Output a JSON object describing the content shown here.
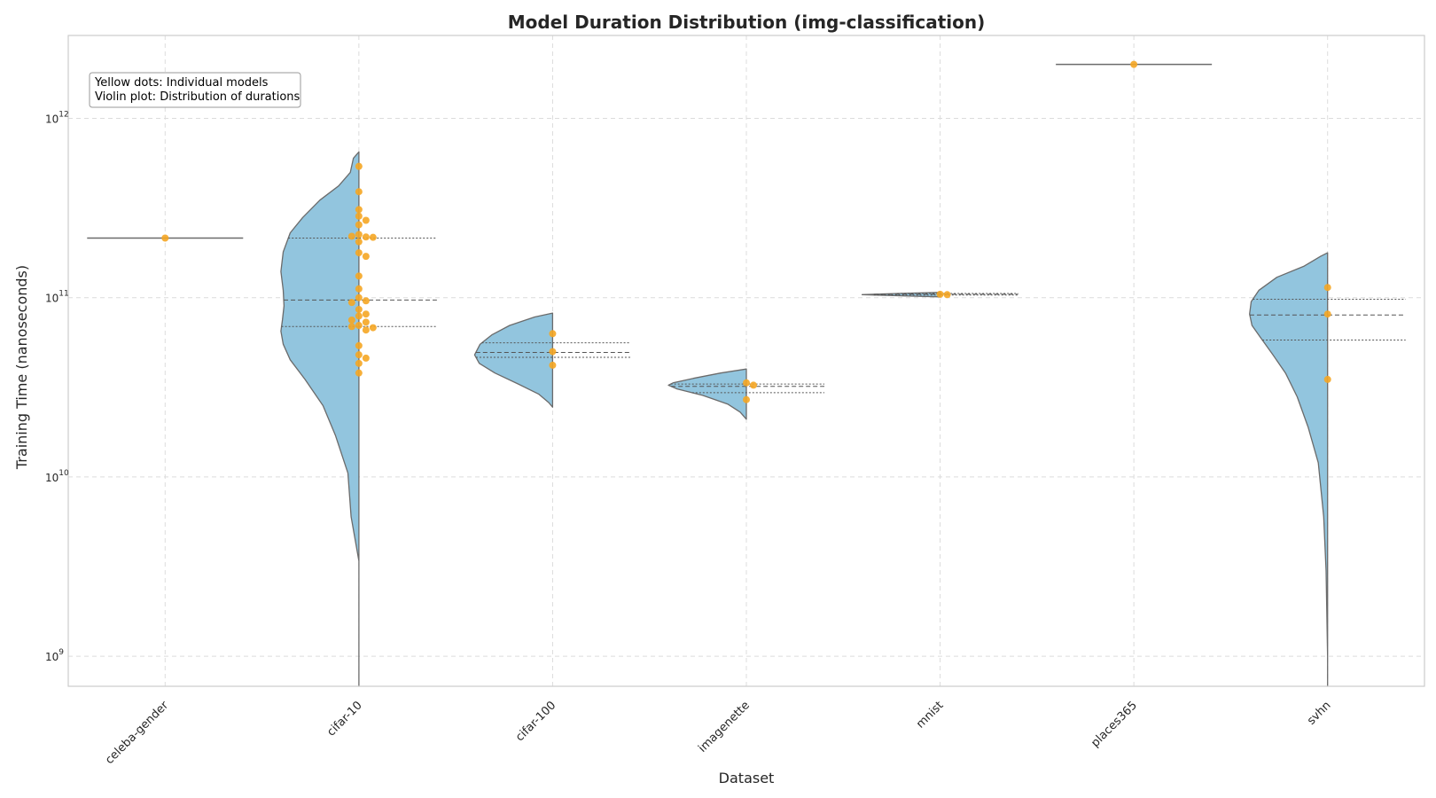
{
  "chart_data": {
    "type": "violin",
    "title": "Model Duration Distribution (img-classification)",
    "xlabel": "Dataset",
    "ylabel": "Training Time (nanoseconds)",
    "yscale": "log",
    "ylim": [
      680000000.0,
      2900000000000.0
    ],
    "yticks": [
      {
        "base": "10",
        "exp": "9",
        "value": 1000000000.0
      },
      {
        "base": "10",
        "exp": "10",
        "value": 10000000000.0
      },
      {
        "base": "10",
        "exp": "11",
        "value": 100000000000.0
      },
      {
        "base": "10",
        "exp": "12",
        "value": 1000000000000.0
      }
    ],
    "categories": [
      "celeba-gender",
      "cifar-10",
      "cifar-100",
      "imagenette",
      "mnist",
      "places365",
      "svhn"
    ],
    "annotation": [
      "Yellow dots: Individual models",
      "Violin plot: Distribution of durations"
    ],
    "colors": {
      "violin_fill": "#92c5de",
      "violin_edge": "#6b6b6b",
      "dot": "#f5a623",
      "grid": "#dcdcdc",
      "frame": "#cccccc"
    },
    "series": [
      {
        "name": "celeba-gender",
        "points": [
          215000000000.0
        ],
        "violin": [
          [
            215000000000.0,
            1.0
          ]
        ],
        "quartiles": []
      },
      {
        "name": "cifar-10",
        "points": [
          540000000000.0,
          390000000000.0,
          310000000000.0,
          285000000000.0,
          270000000000.0,
          255000000000.0,
          225000000000.0,
          218000000000.0,
          220000000000.0,
          217000000000.0,
          205000000000.0,
          178000000000.0,
          170000000000.0,
          132000000000.0,
          112000000000.0,
          100000000000.0,
          96000000000.0,
          94000000000.0,
          86000000000.0,
          81000000000.0,
          79000000000.0,
          75000000000.0,
          73000000000.0,
          70000000000.0,
          69000000000.0,
          68000000000.0,
          66000000000.0,
          54000000000.0,
          48000000000.0,
          46000000000.0,
          43000000000.0,
          38000000000.0
        ],
        "violin": [
          [
            650000000000.0,
            0.0
          ],
          [
            600000000000.0,
            0.07
          ],
          [
            500000000000.0,
            0.11
          ],
          [
            420000000000.0,
            0.26
          ],
          [
            350000000000.0,
            0.5
          ],
          [
            280000000000.0,
            0.72
          ],
          [
            230000000000.0,
            0.88
          ],
          [
            180000000000.0,
            0.97
          ],
          [
            140000000000.0,
            1.0
          ],
          [
            110000000000.0,
            0.97
          ],
          [
            90000000000.0,
            0.96
          ],
          [
            75000000000.0,
            0.98
          ],
          [
            65000000000.0,
            1.0
          ],
          [
            55000000000.0,
            0.97
          ],
          [
            45000000000.0,
            0.88
          ],
          [
            35000000000.0,
            0.69
          ],
          [
            25000000000.0,
            0.46
          ],
          [
            17000000000.0,
            0.3
          ],
          [
            10500000000.0,
            0.14
          ],
          [
            6000000000.0,
            0.1
          ],
          [
            3400000000.0,
            0.0
          ],
          [
            680000000.0,
            0.0
          ]
        ],
        "quartiles": [
          69000000000.0,
          97000000000.0,
          215000000000.0
        ]
      },
      {
        "name": "cifar-100",
        "points": [
          63000000000.0,
          50000000000.0,
          42000000000.0
        ],
        "violin": [
          [
            82000000000.0,
            0.0
          ],
          [
            78000000000.0,
            0.23
          ],
          [
            70000000000.0,
            0.55
          ],
          [
            62000000000.0,
            0.78
          ],
          [
            55000000000.0,
            0.93
          ],
          [
            48000000000.0,
            1.0
          ],
          [
            43000000000.0,
            0.94
          ],
          [
            38000000000.0,
            0.74
          ],
          [
            33000000000.0,
            0.44
          ],
          [
            29000000000.0,
            0.18
          ],
          [
            26000000000.0,
            0.05
          ],
          [
            24500000000.0,
            0.0
          ]
        ],
        "quartiles": [
          46500000000.0,
          49500000000.0,
          56000000000.0
        ]
      },
      {
        "name": "imagenette",
        "points": [
          33500000000.0,
          32500000000.0,
          27000000000.0
        ],
        "violin": [
          [
            40000000000.0,
            0.0
          ],
          [
            38000000000.0,
            0.33
          ],
          [
            35500000000.0,
            0.68
          ],
          [
            33500000000.0,
            0.94
          ],
          [
            32500000000.0,
            1.0
          ],
          [
            31000000000.0,
            0.89
          ],
          [
            28500000000.0,
            0.56
          ],
          [
            25500000000.0,
            0.24
          ],
          [
            23000000000.0,
            0.08
          ],
          [
            21000000000.0,
            0.0
          ]
        ],
        "quartiles": [
          29500000000.0,
          32000000000.0,
          33000000000.0
        ]
      },
      {
        "name": "mnist",
        "points": [
          104500000000.0,
          104000000000.0
        ],
        "violin": [
          [
            107000000000.0,
            0.0
          ],
          [
            105500000000.0,
            0.55
          ],
          [
            104000000000.0,
            1.0
          ],
          [
            102500000000.0,
            0.55
          ],
          [
            101000000000.0,
            0.0
          ]
        ],
        "quartiles": [
          103500000000.0,
          104500000000.0,
          105500000000.0
        ]
      },
      {
        "name": "places365",
        "points": [
          2000000000000.0
        ],
        "violin": [
          [
            2000000000000.0,
            1.0
          ]
        ],
        "quartiles": []
      },
      {
        "name": "svhn",
        "points": [
          114000000000.0,
          81000000000.0,
          35000000000.0
        ],
        "violin": [
          [
            178000000000.0,
            0.0
          ],
          [
            170000000000.0,
            0.09
          ],
          [
            150000000000.0,
            0.3
          ],
          [
            130000000000.0,
            0.65
          ],
          [
            110000000000.0,
            0.88
          ],
          [
            95000000000.0,
            0.98
          ],
          [
            81000000000.0,
            1.0
          ],
          [
            70000000000.0,
            0.97
          ],
          [
            60000000000.0,
            0.86
          ],
          [
            48000000000.0,
            0.7
          ],
          [
            38000000000.0,
            0.54
          ],
          [
            28000000000.0,
            0.39
          ],
          [
            19000000000.0,
            0.25
          ],
          [
            12000000000.0,
            0.12
          ],
          [
            6000000000.0,
            0.05
          ],
          [
            3000000000.0,
            0.02
          ],
          [
            1000000000.0,
            0.0
          ],
          [
            680000000.0,
            0.0
          ]
        ],
        "quartiles": [
          58000000000.0,
          80000000000.0,
          98000000000.0
        ]
      }
    ]
  }
}
